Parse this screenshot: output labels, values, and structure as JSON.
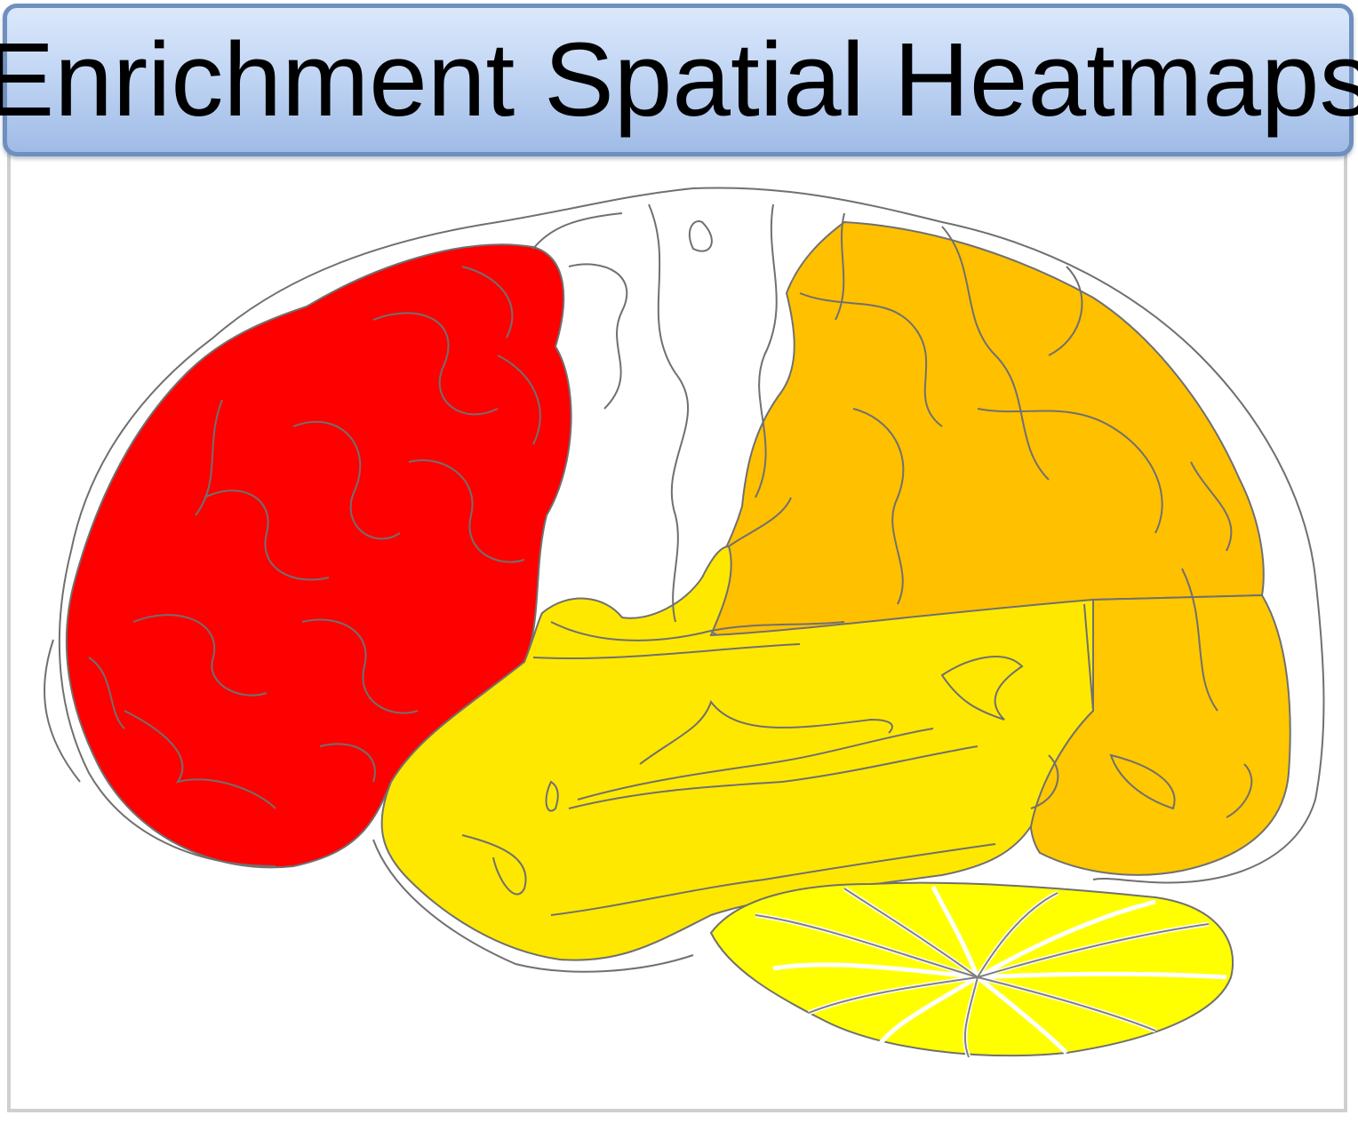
{
  "title": "Enrichment Spatial Heatmaps",
  "colors": {
    "frontal": "#ff0000",
    "parietal": "#ffc000",
    "temporal": "#ffe800",
    "occipital": "#ffc800",
    "cerebellum": "#ffff00",
    "outline": "#707070",
    "frame_border": "#cfcfcf",
    "title_border": "#6f8fbf"
  },
  "regions": [
    {
      "name": "frontal-lobe",
      "color_key": "frontal"
    },
    {
      "name": "parietal-lobe",
      "color_key": "parietal"
    },
    {
      "name": "temporal-lobe",
      "color_key": "temporal"
    },
    {
      "name": "occipital-lobe",
      "color_key": "occipital"
    },
    {
      "name": "cerebellum",
      "color_key": "cerebellum"
    }
  ]
}
